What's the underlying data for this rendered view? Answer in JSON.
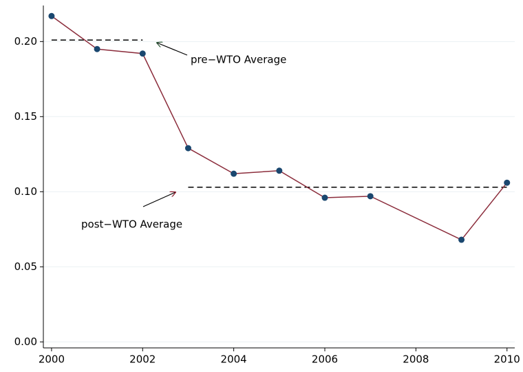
{
  "chart_data": {
    "type": "line",
    "x": [
      2000,
      2001,
      2002,
      2003,
      2004,
      2005,
      2006,
      2007,
      2009,
      2010
    ],
    "values": [
      0.217,
      0.195,
      0.192,
      0.129,
      0.112,
      0.114,
      0.096,
      0.097,
      0.068,
      0.106
    ],
    "color": "#8b2c3b",
    "marker_color": "#1a476f",
    "xlim": [
      1999.82,
      2010.17
    ],
    "xticks": [
      2000,
      2002,
      2004,
      2006,
      2008,
      2010
    ],
    "ylim": [
      -0.004,
      0.224
    ],
    "yticks": [
      {
        "value": 0,
        "label": "0.00"
      },
      0.05,
      {
        "value": 0.1,
        "label": "0.10"
      },
      0.15,
      {
        "value": 0.2,
        "label": "0.20"
      }
    ],
    "grid": true,
    "reference_lines": [
      {
        "value": 0.201,
        "x": [
          2000,
          2002
        ],
        "color": "#000000"
      },
      {
        "value": 0.103,
        "x": [
          2003,
          2010
        ],
        "color": "#000000"
      }
    ],
    "annotations": [
      {
        "text": "pre−WTO Average",
        "arrow_color": "#2f5a3a"
      },
      {
        "text": "post−WTO Average",
        "arrow_color": "#8b1a2b"
      }
    ]
  }
}
